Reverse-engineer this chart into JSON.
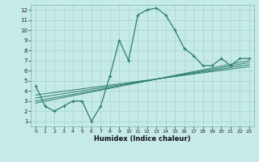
{
  "xlabel": "Humidex (Indice chaleur)",
  "bg_color": "#c5eae7",
  "grid_color": "#a8d5d0",
  "line_color": "#2e7d6e",
  "xlim": [
    -0.5,
    23.5
  ],
  "ylim": [
    0.5,
    12.5
  ],
  "xticks": [
    0,
    1,
    2,
    3,
    4,
    5,
    6,
    7,
    8,
    9,
    10,
    11,
    12,
    13,
    14,
    15,
    16,
    17,
    18,
    19,
    20,
    21,
    22,
    23
  ],
  "yticks": [
    1,
    2,
    3,
    4,
    5,
    6,
    7,
    8,
    9,
    10,
    11,
    12
  ],
  "main_x": [
    0,
    1,
    2,
    3,
    4,
    5,
    6,
    7,
    8,
    9,
    10,
    11,
    12,
    13,
    14,
    15,
    16,
    17,
    18,
    19,
    20,
    21,
    22,
    23
  ],
  "main_y": [
    4.5,
    2.5,
    2.0,
    2.5,
    3.0,
    3.0,
    1.0,
    2.5,
    5.5,
    9.0,
    7.0,
    11.5,
    12.0,
    12.2,
    11.5,
    10.0,
    8.2,
    7.5,
    6.5,
    6.5,
    7.2,
    6.5,
    7.2,
    7.2
  ],
  "trend_lines": [
    {
      "x0": 0,
      "y0": 2.8,
      "x1": 23,
      "y1": 7.0
    },
    {
      "x0": 0,
      "y0": 3.0,
      "x1": 23,
      "y1": 6.8
    },
    {
      "x0": 0,
      "y0": 3.3,
      "x1": 23,
      "y1": 6.6
    },
    {
      "x0": 0,
      "y0": 3.6,
      "x1": 23,
      "y1": 6.4
    }
  ]
}
